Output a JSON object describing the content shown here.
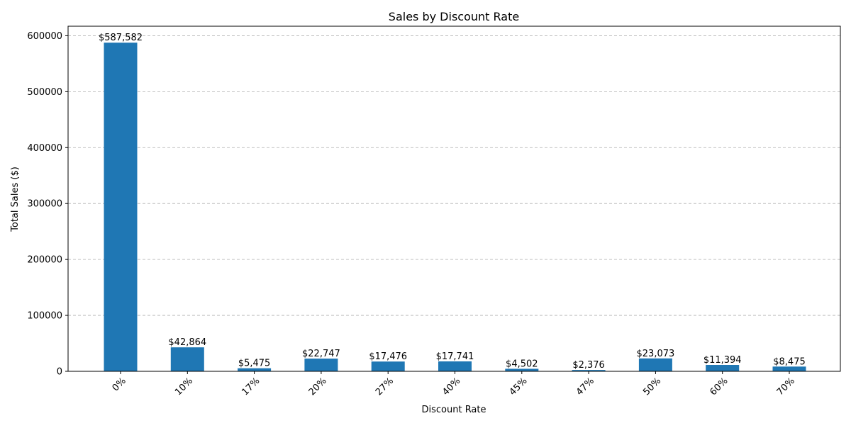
{
  "chart_data": {
    "type": "bar",
    "title": "Sales by Discount Rate",
    "xlabel": "Discount Rate",
    "ylabel": "Total Sales ($)",
    "categories": [
      "0%",
      "10%",
      "17%",
      "20%",
      "27%",
      "40%",
      "45%",
      "47%",
      "50%",
      "60%",
      "70%"
    ],
    "values": [
      587582,
      42864,
      5475,
      22747,
      17476,
      17741,
      4502,
      2376,
      23073,
      11394,
      8475
    ],
    "value_labels": [
      "$587,582",
      "$42,864",
      "$5,475",
      "$22,747",
      "$17,476",
      "$17,741",
      "$4,502",
      "$2,376",
      "$23,073",
      "$11,394",
      "$8,475"
    ],
    "ylim": [
      0,
      617000
    ],
    "yticks": [
      0,
      100000,
      200000,
      300000,
      400000,
      500000,
      600000
    ],
    "ytick_labels": [
      "0",
      "100000",
      "200000",
      "300000",
      "400000",
      "500000",
      "600000"
    ],
    "grid": true,
    "bar_color": "#1f77b4"
  }
}
